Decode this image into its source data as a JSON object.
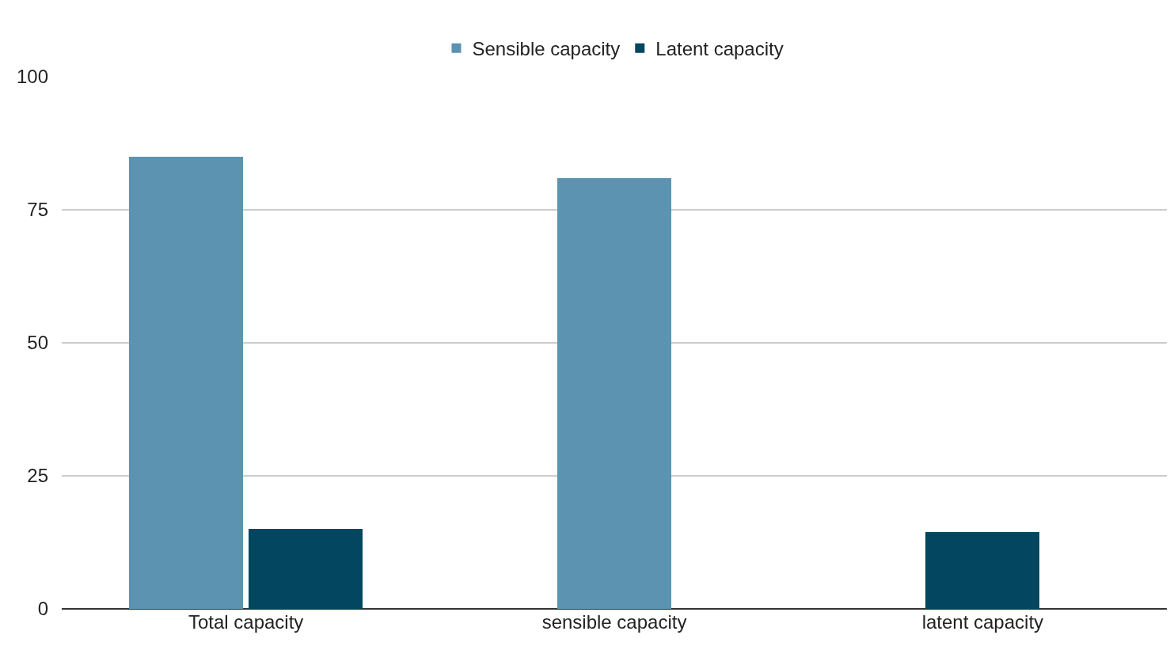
{
  "chart_data": {
    "type": "bar",
    "categories": [
      "Total capacity",
      "sensible capacity",
      "latent capacity"
    ],
    "series": [
      {
        "name": "Sensible capacity",
        "color": "#5b93b0",
        "values": [
          85,
          81,
          null
        ]
      },
      {
        "name": "Latent capacity",
        "color": "#02465f",
        "values": [
          15,
          null,
          14.5
        ]
      }
    ],
    "ylim": [
      0,
      100
    ],
    "yticks": [
      0,
      25,
      50,
      75,
      100
    ],
    "grid": "y",
    "legend": "top"
  }
}
